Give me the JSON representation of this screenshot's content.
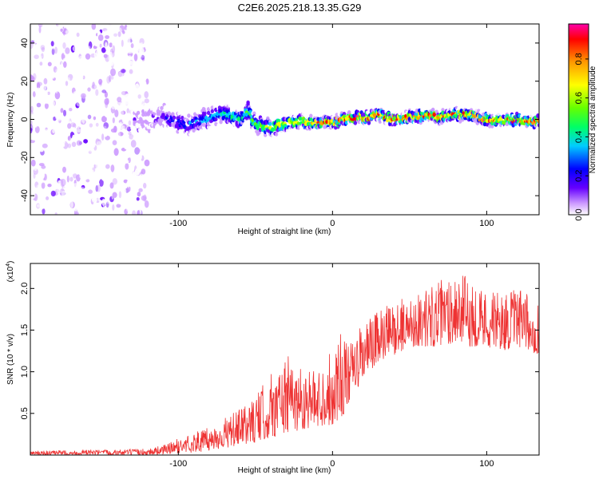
{
  "title": "C2E6.2025.218.13.35.G29",
  "chart_data": [
    {
      "type": "heatmap",
      "xlabel": "Height of straight line (km)",
      "ylabel": "Frequency (Hz)",
      "xlim": [
        -196,
        134
      ],
      "ylim": [
        -50,
        50
      ],
      "x_ticks": [
        -100,
        0,
        100
      ],
      "y_ticks": [
        -40,
        -20,
        0,
        20,
        40
      ],
      "colorbar": {
        "label": "Normalized spectral amplitude",
        "range": [
          0,
          0.98
        ],
        "ticks": [
          "0.0",
          "0.2",
          "0.4",
          "0.6",
          "0.8"
        ],
        "colors": [
          "#ffffff",
          "#cc99ff",
          "#6600ff",
          "#0000ff",
          "#00ccff",
          "#00ff66",
          "#66ff00",
          "#ffff00",
          "#ff9900",
          "#ff0000",
          "#ff00aa"
        ]
      },
      "ridge": {
        "x": [
          -120,
          -110,
          -100,
          -95,
          -90,
          -80,
          -70,
          -60,
          -55,
          -50,
          -40,
          -30,
          -20,
          -10,
          0,
          10,
          20,
          30,
          40,
          50,
          60,
          70,
          80,
          90,
          100,
          110,
          120,
          130
        ],
        "y": [
          0,
          1,
          -1,
          -3,
          -2,
          1,
          3,
          0,
          5,
          -3,
          -4,
          -2,
          -1,
          -2,
          -2,
          1,
          1,
          2,
          0,
          1,
          2,
          1,
          3,
          2,
          0,
          -1,
          0,
          -1
        ]
      }
    },
    {
      "type": "line",
      "xlabel": "Height of straight line (km)",
      "ylabel": "SNR (10 * v/v)",
      "y_multiplier": "(x10",
      "y_multiplier_exp": "4",
      "y_multiplier_close": ")",
      "xlim": [
        -196,
        134
      ],
      "ylim": [
        0,
        2.3
      ],
      "x_ticks": [
        -100,
        0,
        100
      ],
      "y_ticks": [
        "0.5",
        "1.0",
        "1.5",
        "2.0"
      ],
      "color": "#ee3333",
      "series_envelope": {
        "x": [
          -196,
          -130,
          -120,
          -110,
          -100,
          -90,
          -80,
          -70,
          -60,
          -50,
          -40,
          -30,
          -20,
          -10,
          0,
          5,
          10,
          20,
          30,
          40,
          50,
          60,
          70,
          80,
          90,
          100,
          110,
          120,
          134
        ],
        "low": [
          0.0,
          0.0,
          0.0,
          0.01,
          0.02,
          0.03,
          0.05,
          0.08,
          0.12,
          0.15,
          0.2,
          0.25,
          0.3,
          0.35,
          0.35,
          0.4,
          0.6,
          0.9,
          1.1,
          1.2,
          1.3,
          1.3,
          1.3,
          1.35,
          1.3,
          1.3,
          1.25,
          1.3,
          1.2
        ],
        "high": [
          0.05,
          0.07,
          0.08,
          0.12,
          0.2,
          0.28,
          0.33,
          0.45,
          0.55,
          0.7,
          1.0,
          1.2,
          1.1,
          1.0,
          1.3,
          1.6,
          1.3,
          1.6,
          1.75,
          1.85,
          1.9,
          2.0,
          2.1,
          2.25,
          2.1,
          2.0,
          1.95,
          2.0,
          1.85
        ]
      }
    }
  ]
}
